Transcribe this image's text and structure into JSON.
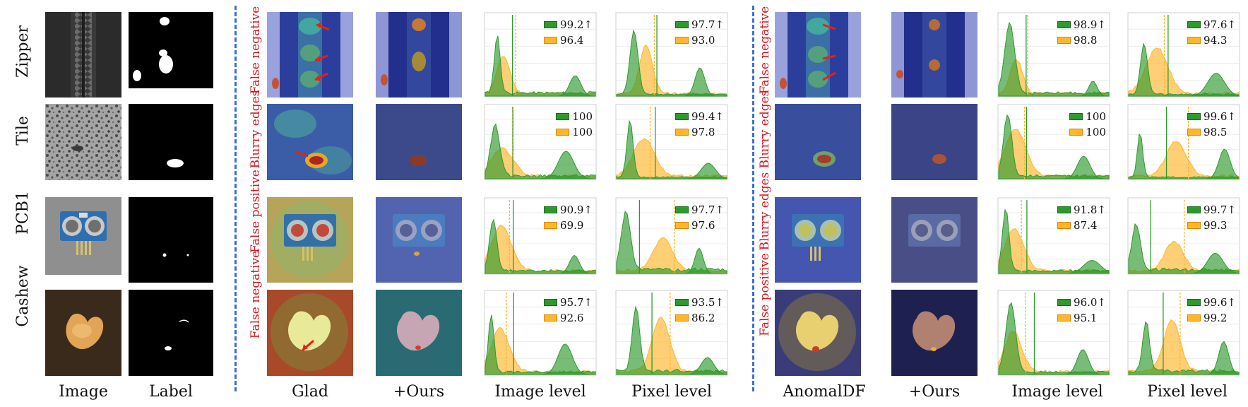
{
  "figure": {
    "rows": [
      "Zipper",
      "Tile",
      "PCB1",
      "Cashew"
    ],
    "column_labels": {
      "image": "Image",
      "label": "Label",
      "glad": "Glad",
      "ours_left": "+Ours",
      "image_level_left": "Image level",
      "pixel_level_left": "Pixel level",
      "anomaldf": "AnomalDF",
      "ours_right": "+Ours",
      "image_level_right": "Image level",
      "pixel_level_right": "Pixel level"
    },
    "failure_labels_left": [
      "False negative",
      "Blurry edges",
      "False positive",
      "False negative"
    ],
    "failure_labels_right": [
      "False negative",
      "Blurry edges",
      "Blurry edges",
      "False positive"
    ]
  },
  "legend_colors": {
    "ours": "#2e9a2e",
    "baseline": "#ffb62d",
    "failure_text": "#c81d25",
    "divider": "#3a6fd6"
  },
  "chart_data": [
    {
      "type": "area",
      "row": "Zipper",
      "group": "Glad",
      "level": "Image level",
      "series": [
        {
          "label": "99.2↑"
        },
        {
          "label": "96.4"
        }
      ]
    },
    {
      "type": "area",
      "row": "Zipper",
      "group": "Glad",
      "level": "Pixel level",
      "series": [
        {
          "label": "97.7↑"
        },
        {
          "label": "93.0"
        }
      ]
    },
    {
      "type": "area",
      "row": "Zipper",
      "group": "AnomalDF",
      "level": "Image level",
      "series": [
        {
          "label": "98.9↑"
        },
        {
          "label": "98.8"
        }
      ]
    },
    {
      "type": "area",
      "row": "Zipper",
      "group": "AnomalDF",
      "level": "Pixel level",
      "series": [
        {
          "label": "97.6↑"
        },
        {
          "label": "94.3"
        }
      ]
    },
    {
      "type": "area",
      "row": "Tile",
      "group": "Glad",
      "level": "Image level",
      "series": [
        {
          "label": "100"
        },
        {
          "label": "100"
        }
      ]
    },
    {
      "type": "area",
      "row": "Tile",
      "group": "Glad",
      "level": "Pixel level",
      "series": [
        {
          "label": "99.4↑"
        },
        {
          "label": "97.8"
        }
      ]
    },
    {
      "type": "area",
      "row": "Tile",
      "group": "AnomalDF",
      "level": "Image level",
      "series": [
        {
          "label": "100"
        },
        {
          "label": "100"
        }
      ]
    },
    {
      "type": "area",
      "row": "Tile",
      "group": "AnomalDF",
      "level": "Pixel level",
      "series": [
        {
          "label": "99.6↑"
        },
        {
          "label": "98.5"
        }
      ]
    },
    {
      "type": "area",
      "row": "PCB1",
      "group": "Glad",
      "level": "Image level",
      "series": [
        {
          "label": "90.9↑"
        },
        {
          "label": "69.9"
        }
      ]
    },
    {
      "type": "area",
      "row": "PCB1",
      "group": "Glad",
      "level": "Pixel level",
      "series": [
        {
          "label": "97.7↑"
        },
        {
          "label": "97.6"
        }
      ]
    },
    {
      "type": "area",
      "row": "PCB1",
      "group": "AnomalDF",
      "level": "Image level",
      "series": [
        {
          "label": "91.8↑"
        },
        {
          "label": "87.4"
        }
      ]
    },
    {
      "type": "area",
      "row": "PCB1",
      "group": "AnomalDF",
      "level": "Pixel level",
      "series": [
        {
          "label": "99.7↑"
        },
        {
          "label": "99.3"
        }
      ]
    },
    {
      "type": "area",
      "row": "Cashew",
      "group": "Glad",
      "level": "Image level",
      "series": [
        {
          "label": "95.7↑"
        },
        {
          "label": "92.6"
        }
      ]
    },
    {
      "type": "area",
      "row": "Cashew",
      "group": "Glad",
      "level": "Pixel level",
      "series": [
        {
          "label": "93.5↑"
        },
        {
          "label": "86.2"
        }
      ]
    },
    {
      "type": "area",
      "row": "Cashew",
      "group": "AnomalDF",
      "level": "Image level",
      "series": [
        {
          "label": "96.0↑"
        },
        {
          "label": "95.1"
        }
      ]
    },
    {
      "type": "area",
      "row": "Cashew",
      "group": "AnomalDF",
      "level": "Pixel level",
      "series": [
        {
          "label": "99.6↑"
        },
        {
          "label": "99.2"
        }
      ]
    }
  ]
}
